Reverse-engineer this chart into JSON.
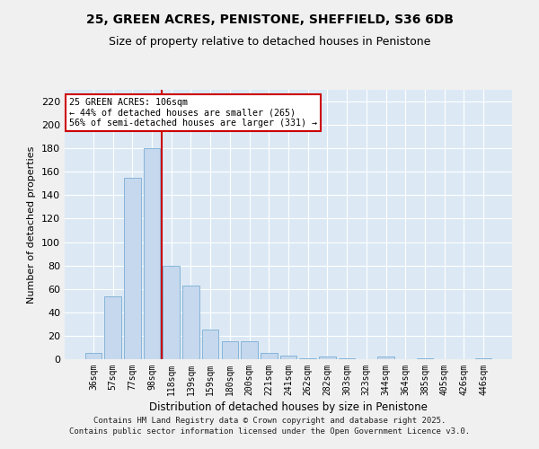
{
  "title_line1": "25, GREEN ACRES, PENISTONE, SHEFFIELD, S36 6DB",
  "title_line2": "Size of property relative to detached houses in Penistone",
  "xlabel": "Distribution of detached houses by size in Penistone",
  "ylabel": "Number of detached properties",
  "bar_color": "#c5d8ed",
  "bar_edge_color": "#7aadd4",
  "background_color": "#dce9f5",
  "grid_color": "#ffffff",
  "annotation_line1": "25 GREEN ACRES: 106sqm",
  "annotation_line2": "← 44% of detached houses are smaller (265)",
  "annotation_line3": "56% of semi-detached houses are larger (331) →",
  "categories": [
    "36sqm",
    "57sqm",
    "77sqm",
    "98sqm",
    "118sqm",
    "139sqm",
    "159sqm",
    "180sqm",
    "200sqm",
    "221sqm",
    "241sqm",
    "262sqm",
    "282sqm",
    "303sqm",
    "323sqm",
    "344sqm",
    "364sqm",
    "385sqm",
    "405sqm",
    "426sqm",
    "446sqm"
  ],
  "bar_heights": [
    5,
    54,
    155,
    180,
    80,
    63,
    25,
    15,
    15,
    5,
    3,
    1,
    2,
    1,
    0,
    2,
    0,
    1,
    0,
    0,
    1
  ],
  "ylim": [
    0,
    230
  ],
  "yticks": [
    0,
    20,
    40,
    60,
    80,
    100,
    120,
    140,
    160,
    180,
    200,
    220
  ],
  "footer_line1": "Contains HM Land Registry data © Crown copyright and database right 2025.",
  "footer_line2": "Contains public sector information licensed under the Open Government Licence v3.0.",
  "red_line_color": "#cc0000",
  "annotation_box_color": "#cc0000",
  "fig_bg": "#f0f0f0",
  "red_line_x": 3.5
}
